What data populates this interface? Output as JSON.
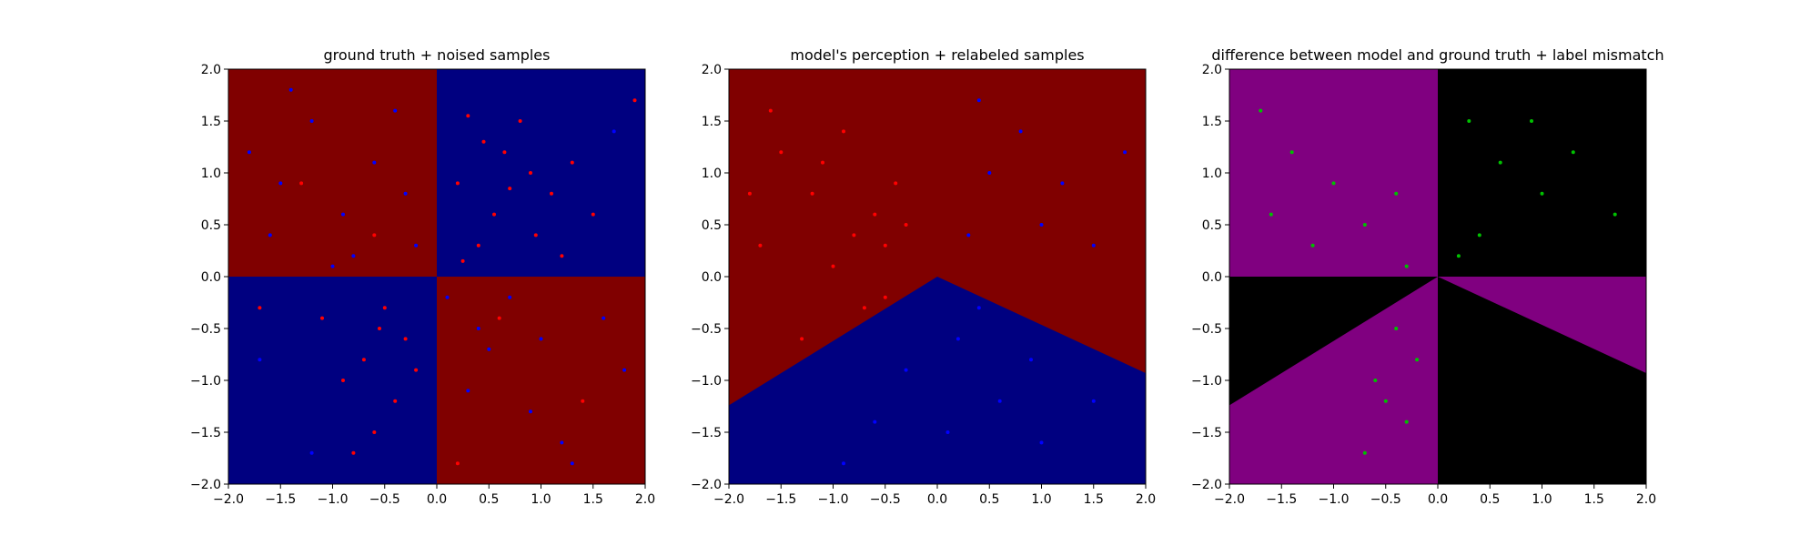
{
  "colors": {
    "dark_red": "#800000",
    "dark_blue": "#000080",
    "red": "#ff0000",
    "blue": "#0000ff",
    "purple": "#800080",
    "black": "#000000",
    "green": "#00c000"
  },
  "chart_data": [
    {
      "type": "scatter",
      "panel": "ground_truth",
      "title": "ground truth + noised samples",
      "xlabel": "",
      "ylabel": "",
      "xlim": [
        -2.0,
        2.0
      ],
      "ylim": [
        -2.0,
        2.0
      ],
      "xticks": [
        "−2.0",
        "−1.5",
        "−1.0",
        "−0.5",
        "0.0",
        "0.5",
        "1.0",
        "1.5",
        "2.0"
      ],
      "yticks": [
        "−2.0",
        "−1.5",
        "−1.0",
        "−0.5",
        "0.0",
        "0.5",
        "1.0",
        "1.5",
        "2.0"
      ],
      "background_regions": [
        {
          "region": "x<0, y>0",
          "color": "#800000"
        },
        {
          "region": "x>0, y>0",
          "color": "#000080"
        },
        {
          "region": "x<0, y<0",
          "color": "#000080"
        },
        {
          "region": "x>0, y<0",
          "color": "#800000"
        }
      ],
      "series": [
        {
          "color": "#ff0000",
          "marker_size": 2,
          "points": [
            [
              0.3,
              1.55
            ],
            [
              0.45,
              1.3
            ],
            [
              0.65,
              1.2
            ],
            [
              0.9,
              1.0
            ],
            [
              1.1,
              0.8
            ],
            [
              0.55,
              0.6
            ],
            [
              0.2,
              0.9
            ],
            [
              1.3,
              1.1
            ],
            [
              0.8,
              1.5
            ],
            [
              1.5,
              0.6
            ],
            [
              0.4,
              0.3
            ],
            [
              0.95,
              0.4
            ],
            [
              1.2,
              0.2
            ],
            [
              0.25,
              0.15
            ],
            [
              0.7,
              0.85
            ],
            [
              -0.5,
              -0.3
            ],
            [
              -0.7,
              -0.8
            ],
            [
              -0.4,
              -1.2
            ],
            [
              -0.9,
              -1.0
            ],
            [
              -0.6,
              -1.5
            ],
            [
              -0.3,
              -0.6
            ],
            [
              -1.1,
              -0.4
            ],
            [
              -0.8,
              -1.7
            ],
            [
              -0.2,
              -0.9
            ],
            [
              -0.55,
              -0.5
            ],
            [
              -1.3,
              0.9
            ],
            [
              -0.6,
              0.4
            ],
            [
              -1.7,
              -0.3
            ],
            [
              0.6,
              -0.4
            ],
            [
              1.4,
              -1.2
            ],
            [
              0.2,
              -1.8
            ],
            [
              1.9,
              1.7
            ]
          ]
        },
        {
          "color": "#0000ff",
          "marker_size": 2,
          "points": [
            [
              -1.8,
              1.2
            ],
            [
              -1.5,
              0.9
            ],
            [
              -1.2,
              1.5
            ],
            [
              -0.9,
              0.6
            ],
            [
              -0.6,
              1.1
            ],
            [
              -0.3,
              0.8
            ],
            [
              -1.6,
              0.4
            ],
            [
              -0.8,
              0.2
            ],
            [
              -1.4,
              1.8
            ],
            [
              -0.4,
              1.6
            ],
            [
              -1.0,
              0.1
            ],
            [
              -0.2,
              0.3
            ],
            [
              1.2,
              -1.6
            ],
            [
              0.5,
              -0.7
            ],
            [
              0.9,
              -1.3
            ],
            [
              1.6,
              -0.4
            ],
            [
              0.3,
              -1.1
            ],
            [
              1.8,
              -0.9
            ],
            [
              0.7,
              -0.2
            ],
            [
              1.3,
              -1.8
            ],
            [
              0.4,
              -0.5
            ],
            [
              1.0,
              -0.6
            ],
            [
              -1.2,
              -1.7
            ],
            [
              -1.7,
              -0.8
            ],
            [
              0.1,
              -0.2
            ],
            [
              1.7,
              1.4
            ]
          ]
        }
      ]
    },
    {
      "type": "scatter",
      "panel": "model_perception",
      "title": "model's perception + relabeled samples",
      "xlabel": "",
      "ylabel": "",
      "xlim": [
        -2.0,
        2.0
      ],
      "ylim": [
        -2.0,
        2.0
      ],
      "xticks": [
        "−2.0",
        "−1.5",
        "−1.0",
        "−0.5",
        "0.0",
        "0.5",
        "1.0",
        "1.5",
        "2.0"
      ],
      "yticks": [
        "−2.0",
        "−1.5",
        "−1.0",
        "−0.5",
        "0.0",
        "0.5",
        "1.0",
        "1.5",
        "2.0"
      ],
      "decision_boundary": [
        [
          -2.0,
          -1.24
        ],
        [
          0.0,
          0.0
        ],
        [
          2.0,
          -0.93
        ]
      ],
      "background_regions": [
        {
          "region": "above boundary",
          "color": "#800000"
        },
        {
          "region": "below boundary",
          "color": "#000080"
        }
      ],
      "series": [
        {
          "color": "#ff0000",
          "marker_size": 2,
          "points": [
            [
              -1.5,
              1.2
            ],
            [
              -1.2,
              0.8
            ],
            [
              -0.9,
              1.4
            ],
            [
              -0.6,
              0.6
            ],
            [
              -0.4,
              0.9
            ],
            [
              -1.7,
              0.3
            ],
            [
              -1.0,
              0.1
            ],
            [
              -0.7,
              -0.3
            ],
            [
              -1.3,
              -0.6
            ],
            [
              -0.5,
              0.3
            ],
            [
              -1.6,
              1.6
            ],
            [
              -0.3,
              0.5
            ],
            [
              -0.8,
              0.4
            ],
            [
              -1.1,
              1.1
            ],
            [
              -1.8,
              0.8
            ],
            [
              -0.5,
              -0.2
            ]
          ]
        },
        {
          "color": "#0000ff",
          "marker_size": 2,
          "points": [
            [
              0.5,
              1.0
            ],
            [
              1.0,
              0.5
            ],
            [
              1.5,
              0.3
            ],
            [
              0.3,
              0.4
            ],
            [
              0.8,
              1.4
            ],
            [
              1.2,
              0.9
            ],
            [
              0.2,
              -0.6
            ],
            [
              0.6,
              -1.2
            ],
            [
              -0.3,
              -0.9
            ],
            [
              1.0,
              -1.6
            ],
            [
              -0.6,
              -1.4
            ],
            [
              0.4,
              -0.3
            ],
            [
              1.5,
              -1.2
            ],
            [
              -0.9,
              -1.8
            ],
            [
              0.1,
              -1.5
            ],
            [
              0.9,
              -0.8
            ],
            [
              1.8,
              1.2
            ],
            [
              0.4,
              1.7
            ]
          ]
        }
      ]
    },
    {
      "type": "scatter",
      "panel": "difference",
      "title": "difference between model and ground truth + label mismatch",
      "xlabel": "",
      "ylabel": "",
      "xlim": [
        -2.0,
        2.0
      ],
      "ylim": [
        -2.0,
        2.0
      ],
      "xticks": [
        "−2.0",
        "−1.5",
        "−1.0",
        "−0.5",
        "0.0",
        "0.5",
        "1.0",
        "1.5",
        "2.0"
      ],
      "yticks": [
        "−2.0",
        "−1.5",
        "−1.0",
        "−0.5",
        "0.0",
        "0.5",
        "1.0",
        "1.5",
        "2.0"
      ],
      "decision_boundary": [
        [
          -2.0,
          -1.24
        ],
        [
          0.0,
          0.0
        ],
        [
          2.0,
          -0.93
        ]
      ],
      "background_regions": [
        {
          "region": "agreement",
          "color": "#800080"
        },
        {
          "region": "disagreement",
          "color": "#000000"
        }
      ],
      "series": [
        {
          "color": "#00c000",
          "marker_size": 2,
          "points": [
            [
              -1.7,
              1.6
            ],
            [
              -1.4,
              1.2
            ],
            [
              -1.0,
              0.9
            ],
            [
              -0.7,
              0.5
            ],
            [
              -0.4,
              0.8
            ],
            [
              -1.2,
              0.3
            ],
            [
              -0.3,
              0.1
            ],
            [
              -1.6,
              0.6
            ],
            [
              0.3,
              1.5
            ],
            [
              0.6,
              1.1
            ],
            [
              1.0,
              0.8
            ],
            [
              1.3,
              1.2
            ],
            [
              0.4,
              0.4
            ],
            [
              0.9,
              1.5
            ],
            [
              1.7,
              0.6
            ],
            [
              0.2,
              0.2
            ],
            [
              -0.4,
              -0.5
            ],
            [
              -0.6,
              -1.0
            ],
            [
              -0.3,
              -1.4
            ],
            [
              -0.7,
              -1.7
            ],
            [
              -0.2,
              -0.8
            ],
            [
              -0.5,
              -1.2
            ]
          ]
        }
      ]
    }
  ]
}
